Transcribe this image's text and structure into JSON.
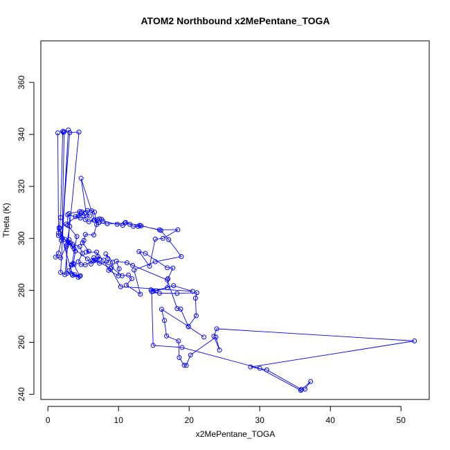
{
  "chart_data": {
    "type": "line",
    "title": "ATOM2 Northbound x2MePentane_TOGA",
    "xlabel": "x2MePentane_TOGA",
    "ylabel": "Theta (K)",
    "xlim": [
      -1,
      54
    ],
    "ylim": [
      238,
      376
    ],
    "xticks": [
      0,
      10,
      20,
      30,
      40,
      50
    ],
    "yticks": [
      240,
      260,
      280,
      300,
      320,
      340,
      360
    ],
    "grid": false,
    "markers": "open-circle",
    "color": "#0000ff",
    "series": [
      {
        "values": [
          [
            1.4,
            340.6
          ],
          [
            1.5,
            302.0
          ],
          [
            1.8,
            308.0
          ],
          [
            2.1,
            341.2
          ],
          [
            2.2,
            340.8
          ],
          [
            2.3,
            341.0
          ],
          [
            2.0,
            300.1
          ],
          [
            2.9,
            341.7
          ],
          [
            1.8,
            286.9
          ],
          [
            2.4,
            286.0
          ],
          [
            4.4,
            340.9
          ],
          [
            3.1,
            340.7
          ],
          [
            1.9,
            299.2
          ],
          [
            1.5,
            294.3
          ],
          [
            1.1,
            292.8
          ],
          [
            1.8,
            292.5
          ],
          [
            2.7,
            297.6
          ],
          [
            3.0,
            299.5
          ],
          [
            3.2,
            298.2
          ],
          [
            3.5,
            296.9
          ],
          [
            3.9,
            295.1
          ],
          [
            3.6,
            290.3
          ],
          [
            3.3,
            289.6
          ],
          [
            3.0,
            287.6
          ],
          [
            3.8,
            286.0
          ],
          [
            4.3,
            285.0
          ],
          [
            4.6,
            285.6
          ],
          [
            3.4,
            286.3
          ],
          [
            2.7,
            286.6
          ],
          [
            2.6,
            296.8
          ],
          [
            3.1,
            304.6
          ],
          [
            3.0,
            309.5
          ],
          [
            4.5,
            310.3
          ],
          [
            4.3,
            308.6
          ],
          [
            3.9,
            308.4
          ],
          [
            5.2,
            309.5
          ],
          [
            5.3,
            307.2
          ],
          [
            5.8,
            306.4
          ],
          [
            6.5,
            307.0
          ],
          [
            7.0,
            307.2
          ],
          [
            7.3,
            307.5
          ],
          [
            7.6,
            307.3
          ],
          [
            7.8,
            306.6
          ],
          [
            9.8,
            305.4
          ],
          [
            10.6,
            305.0
          ],
          [
            11.0,
            306.1
          ],
          [
            11.6,
            305.4
          ],
          [
            12.1,
            304.6
          ],
          [
            12.8,
            304.6
          ],
          [
            13.2,
            304.8
          ],
          [
            15.8,
            303.3
          ],
          [
            18.4,
            303.3
          ],
          [
            16.3,
            300.0
          ],
          [
            15.2,
            299.7
          ],
          [
            14.4,
            289.3
          ],
          [
            12.9,
            294.9
          ],
          [
            13.8,
            294.2
          ],
          [
            16.9,
            288.7
          ],
          [
            17.7,
            288.6
          ],
          [
            17.0,
            284.5
          ],
          [
            16.9,
            281.0
          ],
          [
            15.3,
            279.8
          ],
          [
            14.6,
            280.2
          ],
          [
            14.9,
            279.6
          ],
          [
            15.8,
            278.9
          ],
          [
            18.3,
            278.8
          ],
          [
            21.1,
            279.1
          ],
          [
            20.9,
            277.0
          ],
          [
            21.0,
            270.2
          ],
          [
            19.9,
            266.1
          ],
          [
            16.1,
            272.7
          ],
          [
            16.5,
            268.4
          ],
          [
            16.8,
            262.4
          ],
          [
            18.5,
            260.5
          ],
          [
            18.6,
            254.1
          ],
          [
            19.3,
            251.2
          ],
          [
            19.6,
            251.1
          ],
          [
            20.2,
            255.1
          ],
          [
            23.8,
            262.0
          ],
          [
            24.3,
            257.0
          ],
          [
            23.5,
            262.3
          ],
          [
            23.9,
            265.2
          ],
          [
            51.9,
            260.5
          ],
          [
            28.7,
            250.5
          ],
          [
            31.0,
            249.4
          ],
          [
            35.9,
            241.9
          ],
          [
            36.4,
            242.0
          ],
          [
            37.2,
            244.9
          ],
          [
            35.8,
            241.5
          ],
          [
            30.0,
            250.0
          ],
          [
            19.0,
            258.0
          ],
          [
            14.9,
            258.8
          ],
          [
            14.7,
            279.5
          ],
          [
            17.8,
            281.8
          ],
          [
            20.5,
            279.6
          ],
          [
            10.3,
            281.4
          ],
          [
            8.9,
            288.4
          ],
          [
            6.7,
            291.7
          ],
          [
            6.5,
            292.5
          ],
          [
            6.3,
            291.5
          ],
          [
            5.3,
            289.8
          ],
          [
            4.7,
            289.9
          ],
          [
            4.3,
            291.0
          ],
          [
            4.9,
            294.2
          ],
          [
            4.5,
            296.8
          ],
          [
            3.5,
            297.7
          ],
          [
            2.4,
            299.6
          ],
          [
            1.6,
            303.8
          ],
          [
            2.6,
            305.5
          ],
          [
            4.7,
            309.6
          ],
          [
            4.8,
            310.2
          ],
          [
            5.6,
            310.7
          ],
          [
            6.2,
            310.6
          ],
          [
            6.6,
            310.1
          ],
          [
            6.9,
            305.3
          ],
          [
            6.5,
            301.3
          ],
          [
            5.3,
            301.5
          ],
          [
            5.1,
            299.2
          ],
          [
            4.9,
            298.3
          ],
          [
            5.8,
            295.0
          ],
          [
            5.4,
            294.7
          ],
          [
            6.9,
            294.7
          ],
          [
            7.3,
            292.0
          ],
          [
            6.5,
            291.3
          ],
          [
            7.3,
            290.4
          ],
          [
            8.6,
            290.6
          ],
          [
            8.5,
            292.2
          ],
          [
            8.2,
            294.0
          ],
          [
            9.2,
            290.8
          ],
          [
            9.0,
            288.9
          ],
          [
            10.5,
            285.6
          ],
          [
            11.4,
            285.9
          ],
          [
            11.9,
            284.5
          ],
          [
            11.1,
            282.0
          ],
          [
            13.1,
            278.5
          ],
          [
            12.2,
            287.8
          ],
          [
            15.2,
            291.0
          ],
          [
            18.9,
            293.0
          ],
          [
            17.1,
            299.5
          ],
          [
            16.0,
            303.0
          ],
          [
            13.0,
            305.0
          ],
          [
            10.9,
            305.9
          ],
          [
            8.4,
            305.6
          ],
          [
            7.2,
            306.0
          ],
          [
            6.6,
            307.0
          ],
          [
            4.7,
            323.1
          ],
          [
            5.4,
            309.9
          ],
          [
            5.9,
            308.6
          ],
          [
            4.6,
            307.8
          ],
          [
            2.8,
            309.1
          ],
          [
            2.8,
            305.0
          ],
          [
            4.1,
            300.7
          ],
          [
            3.4,
            290.0
          ],
          [
            3.7,
            289.9
          ],
          [
            4.5,
            285.4
          ],
          [
            3.5,
            285.8
          ],
          [
            1.6,
            304.1
          ],
          [
            1.5,
            301.1
          ],
          [
            2.9,
            298.5
          ],
          [
            3.7,
            296.0
          ],
          [
            5.6,
            292.1
          ],
          [
            6.1,
            290.1
          ],
          [
            7.1,
            293.0
          ],
          [
            7.9,
            291.6
          ],
          [
            8.6,
            287.7
          ],
          [
            10.0,
            285.6
          ],
          [
            10.1,
            288.3
          ],
          [
            9.7,
            291.2
          ],
          [
            11.2,
            290.6
          ],
          [
            12.0,
            289.6
          ],
          [
            16.9,
            284.0
          ],
          [
            18.3,
            273.0
          ],
          [
            18.8,
            272.8
          ],
          [
            19.9,
            266.0
          ],
          [
            22.1,
            262.0
          ]
        ]
      }
    ]
  }
}
